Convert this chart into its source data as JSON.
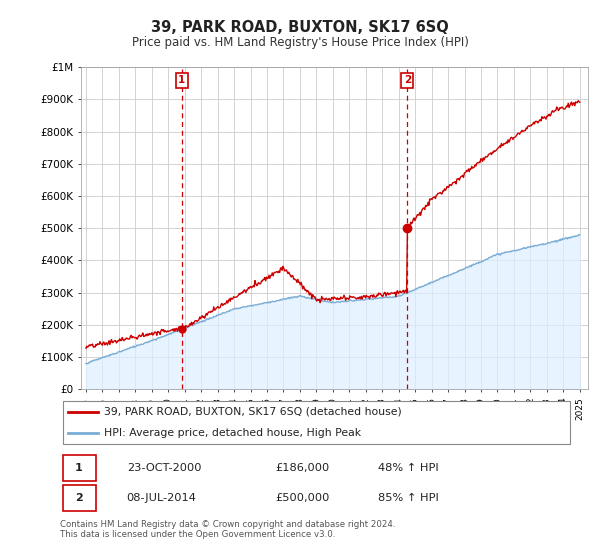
{
  "title": "39, PARK ROAD, BUXTON, SK17 6SQ",
  "subtitle": "Price paid vs. HM Land Registry's House Price Index (HPI)",
  "legend_line1": "39, PARK ROAD, BUXTON, SK17 6SQ (detached house)",
  "legend_line2": "HPI: Average price, detached house, High Peak",
  "footnote": "Contains HM Land Registry data © Crown copyright and database right 2024.\nThis data is licensed under the Open Government Licence v3.0.",
  "transaction1_date": "23-OCT-2000",
  "transaction1_price": "£186,000",
  "transaction1_hpi": "48% ↑ HPI",
  "transaction2_date": "08-JUL-2014",
  "transaction2_price": "£500,000",
  "transaction2_hpi": "85% ↑ HPI",
  "marker1_year": 2000.82,
  "marker1_value": 186000,
  "marker2_year": 2014.52,
  "marker2_value": 500000,
  "hpi_color": "#7aadd4",
  "price_color": "#cc0000",
  "vline_color": "#cc0000",
  "fill_color": "#ddeeff",
  "ylim_max": 1000000,
  "xlim_start": 1994.7,
  "xlim_end": 2025.5,
  "background_color": "#ffffff",
  "grid_color": "#cccccc"
}
